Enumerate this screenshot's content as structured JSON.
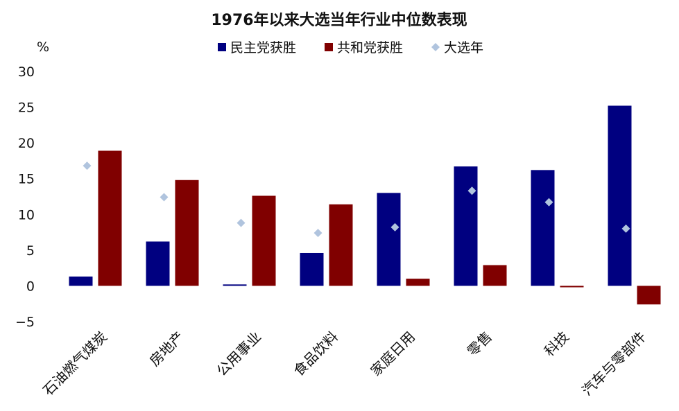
{
  "chart_data": {
    "type": "bar",
    "title": "1976年以来大选当年行业中位数表现",
    "ylabel": "%",
    "ylim": [
      -5,
      30
    ],
    "yticks": [
      -5,
      0,
      5,
      10,
      15,
      20,
      25,
      30
    ],
    "categories": [
      "石油燃气煤炭",
      "房地产",
      "公用事业",
      "食品饮料",
      "家庭日用",
      "零售",
      "科技",
      "汽车与零部件"
    ],
    "series": [
      {
        "name": "民主党获胜",
        "kind": "bar",
        "color": "#000080",
        "values": [
          1.3,
          6.2,
          0.2,
          4.6,
          13.0,
          16.7,
          16.2,
          25.2
        ]
      },
      {
        "name": "共和党获胜",
        "kind": "bar",
        "color": "#800000",
        "values": [
          18.9,
          14.8,
          12.6,
          11.4,
          1.0,
          2.9,
          -0.2,
          -2.6
        ]
      },
      {
        "name": "大选年",
        "kind": "marker",
        "color": "#B0C4DE",
        "values": [
          16.8,
          12.4,
          8.8,
          7.4,
          8.2,
          13.3,
          11.7,
          8.0
        ]
      }
    ],
    "grid": false,
    "legend_position": "top-center"
  }
}
